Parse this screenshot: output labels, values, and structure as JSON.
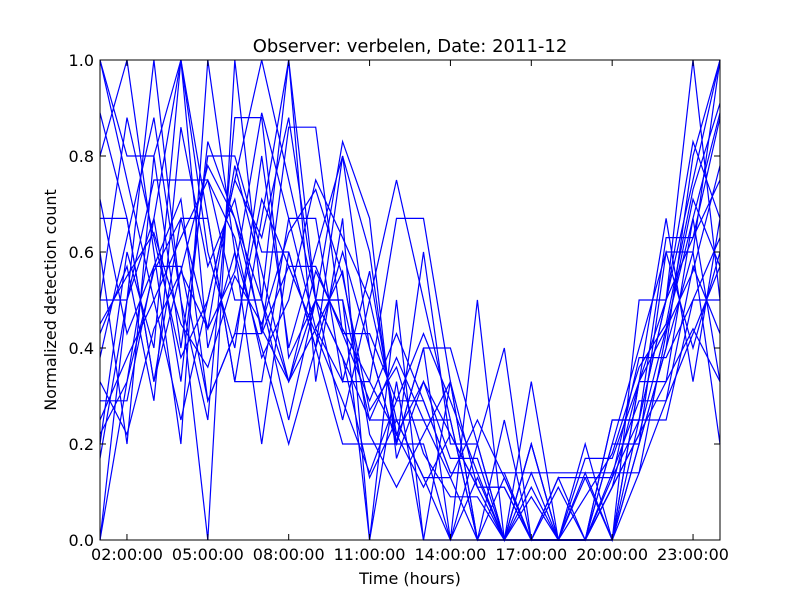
{
  "chart_data": {
    "type": "line",
    "title": "Observer: verbelen, Date: 2011-12",
    "xlabel": "Time (hours)",
    "ylabel": "Normalized detection count",
    "xlim": [
      1,
      24
    ],
    "ylim": [
      0,
      1.0
    ],
    "x_ticks": [
      {
        "value": 2,
        "label": "02:00:00"
      },
      {
        "value": 5,
        "label": "05:00:00"
      },
      {
        "value": 8,
        "label": "08:00:00"
      },
      {
        "value": 11,
        "label": "11:00:00"
      },
      {
        "value": 14,
        "label": "14:00:00"
      },
      {
        "value": 17,
        "label": "17:00:00"
      },
      {
        "value": 20,
        "label": "20:00:00"
      },
      {
        "value": 23,
        "label": "23:00:00"
      }
    ],
    "y_ticks": [
      {
        "value": 0.0,
        "label": "0.0"
      },
      {
        "value": 0.2,
        "label": "0.2"
      },
      {
        "value": 0.4,
        "label": "0.4"
      },
      {
        "value": 0.6,
        "label": "0.6"
      },
      {
        "value": 0.8,
        "label": "0.8"
      },
      {
        "value": 1.0,
        "label": "1.0"
      }
    ],
    "grid": false,
    "line_color": "#0000ff",
    "x": [
      1,
      2,
      3,
      4,
      5,
      6,
      7,
      8,
      9,
      10,
      11,
      12,
      13,
      14,
      15,
      16,
      17,
      18,
      19,
      20,
      21,
      22,
      23,
      24
    ],
    "series": [
      {
        "values": [
          0.5,
          0.5,
          0.75,
          0.75,
          0.75,
          0.5,
          0.5,
          0.25,
          0.5,
          0.5,
          0.25,
          0.25,
          0.25,
          0.25,
          0.0,
          0.0,
          0.0,
          0.0,
          0.0,
          0.25,
          0.25,
          0.25,
          0.5,
          0.5
        ]
      },
      {
        "values": [
          1.0,
          0.8,
          0.8,
          0.4,
          0.8,
          0.8,
          0.6,
          0.6,
          0.4,
          0.2,
          0.2,
          0.2,
          0.2,
          0.0,
          0.0,
          0.0,
          0.2,
          0.0,
          0.0,
          0.2,
          0.2,
          0.6,
          0.6,
          1.0
        ]
      },
      {
        "values": [
          0.29,
          0.29,
          0.57,
          0.57,
          0.29,
          0.43,
          0.43,
          0.57,
          0.57,
          0.43,
          0.43,
          0.29,
          0.29,
          0.14,
          0.14,
          0.14,
          0.14,
          0.14,
          0.14,
          0.14,
          0.29,
          0.29,
          0.57,
          0.43
        ]
      },
      {
        "values": [
          0.0,
          0.5,
          1.0,
          0.5,
          0.0,
          1.0,
          0.5,
          1.0,
          0.5,
          0.5,
          0.0,
          0.5,
          0.0,
          0.0,
          0.5,
          0.0,
          0.0,
          0.0,
          0.0,
          0.0,
          0.5,
          0.5,
          1.0,
          0.5
        ]
      },
      {
        "values": [
          0.67,
          0.67,
          0.33,
          0.67,
          0.67,
          0.33,
          0.33,
          0.67,
          0.67,
          0.33,
          0.33,
          0.67,
          0.67,
          0.33,
          0.0,
          0.0,
          0.0,
          0.0,
          0.0,
          0.0,
          0.33,
          0.33,
          0.67,
          0.33
        ]
      },
      {
        "values": [
          0.2,
          0.6,
          0.4,
          1.0,
          0.6,
          0.4,
          0.8,
          0.4,
          0.6,
          0.8,
          0.4,
          0.2,
          0.4,
          0.4,
          0.2,
          0.0,
          0.2,
          0.0,
          0.0,
          0.0,
          0.2,
          0.4,
          0.8,
          1.0
        ]
      },
      {
        "values": [
          0.43,
          0.57,
          0.29,
          0.86,
          0.57,
          0.71,
          0.43,
          0.86,
          0.86,
          0.43,
          0.29,
          0.43,
          0.29,
          0.14,
          0.14,
          0.14,
          0.0,
          0.0,
          0.14,
          0.0,
          0.14,
          0.43,
          0.71,
          0.57
        ]
      },
      {
        "values": [
          1.0,
          0.75,
          0.5,
          0.25,
          0.5,
          0.75,
          1.0,
          0.75,
          0.5,
          0.25,
          0.5,
          0.75,
          0.5,
          0.25,
          0.0,
          0.25,
          0.0,
          0.0,
          0.0,
          0.25,
          0.25,
          0.5,
          0.75,
          1.0
        ]
      },
      {
        "values": [
          0.22,
          0.33,
          0.56,
          0.67,
          0.44,
          0.56,
          0.89,
          0.67,
          0.44,
          0.33,
          0.56,
          0.22,
          0.33,
          0.22,
          0.11,
          0.11,
          0.0,
          0.11,
          0.0,
          0.11,
          0.33,
          0.44,
          0.56,
          0.78
        ]
      },
      {
        "values": [
          0.6,
          0.2,
          0.8,
          1.0,
          0.4,
          0.6,
          0.4,
          0.2,
          0.4,
          0.6,
          0.4,
          0.2,
          0.6,
          0.2,
          0.2,
          0.0,
          0.2,
          0.0,
          0.0,
          0.2,
          0.4,
          0.6,
          0.4,
          0.6
        ]
      },
      {
        "values": [
          0.17,
          0.5,
          0.67,
          0.33,
          0.83,
          0.67,
          0.5,
          0.33,
          0.5,
          0.83,
          0.67,
          0.17,
          0.33,
          0.17,
          0.17,
          0.0,
          0.0,
          0.0,
          0.17,
          0.17,
          0.33,
          0.5,
          0.83,
          0.67
        ]
      },
      {
        "values": [
          0.38,
          0.63,
          0.88,
          0.5,
          0.25,
          0.88,
          0.88,
          0.38,
          0.5,
          0.38,
          0.13,
          0.25,
          0.13,
          0.0,
          0.13,
          0.0,
          0.0,
          0.13,
          0.0,
          0.13,
          0.25,
          0.63,
          0.63,
          0.88
        ]
      },
      {
        "values": [
          0.8,
          1.0,
          0.6,
          0.2,
          1.0,
          0.6,
          0.2,
          0.6,
          0.4,
          0.8,
          0.6,
          0.2,
          0.4,
          0.0,
          0.2,
          0.4,
          0.0,
          0.0,
          0.2,
          0.0,
          0.2,
          0.4,
          0.6,
          0.2
        ]
      },
      {
        "values": [
          0.45,
          0.55,
          0.64,
          0.45,
          0.36,
          0.55,
          0.45,
          0.64,
          0.73,
          0.55,
          0.27,
          0.36,
          0.18,
          0.09,
          0.09,
          0.0,
          0.09,
          0.0,
          0.09,
          0.18,
          0.36,
          0.45,
          0.73,
          0.91
        ]
      },
      {
        "values": [
          0.0,
          0.33,
          0.67,
          1.0,
          0.67,
          0.33,
          0.67,
          1.0,
          0.33,
          0.67,
          0.0,
          0.33,
          0.0,
          0.33,
          0.0,
          0.0,
          0.33,
          0.0,
          0.0,
          0.0,
          0.33,
          0.67,
          0.33,
          0.67
        ]
      },
      {
        "values": [
          0.25,
          0.38,
          0.5,
          0.63,
          0.75,
          0.63,
          0.38,
          0.5,
          0.75,
          0.63,
          0.5,
          0.25,
          0.13,
          0.13,
          0.25,
          0.13,
          0.0,
          0.0,
          0.13,
          0.13,
          0.38,
          0.38,
          0.5,
          0.63
        ]
      },
      {
        "values": [
          0.71,
          0.43,
          0.57,
          0.71,
          0.29,
          0.43,
          0.71,
          0.57,
          0.43,
          0.29,
          0.14,
          0.29,
          0.43,
          0.29,
          0.14,
          0.0,
          0.14,
          0.0,
          0.0,
          0.14,
          0.14,
          0.29,
          0.43,
          0.57
        ]
      },
      {
        "values": [
          0.5,
          0.88,
          0.63,
          0.38,
          0.5,
          0.75,
          0.63,
          0.88,
          0.5,
          0.38,
          0.25,
          0.38,
          0.25,
          0.13,
          0.0,
          0.13,
          0.0,
          0.13,
          0.13,
          0.0,
          0.25,
          0.5,
          0.63,
          0.75
        ]
      },
      {
        "values": [
          0.33,
          0.22,
          0.44,
          0.56,
          0.78,
          0.67,
          0.44,
          0.33,
          0.56,
          0.44,
          0.33,
          0.22,
          0.11,
          0.22,
          0.11,
          0.0,
          0.11,
          0.0,
          0.0,
          0.11,
          0.22,
          0.33,
          0.44,
          0.33
        ]
      },
      {
        "values": [
          0.89,
          0.67,
          0.33,
          0.56,
          0.44,
          0.78,
          0.56,
          0.33,
          0.44,
          0.56,
          0.22,
          0.11,
          0.22,
          0.33,
          0.11,
          0.11,
          0.0,
          0.0,
          0.0,
          0.11,
          0.22,
          0.44,
          0.67,
          0.89
        ]
      }
    ]
  }
}
